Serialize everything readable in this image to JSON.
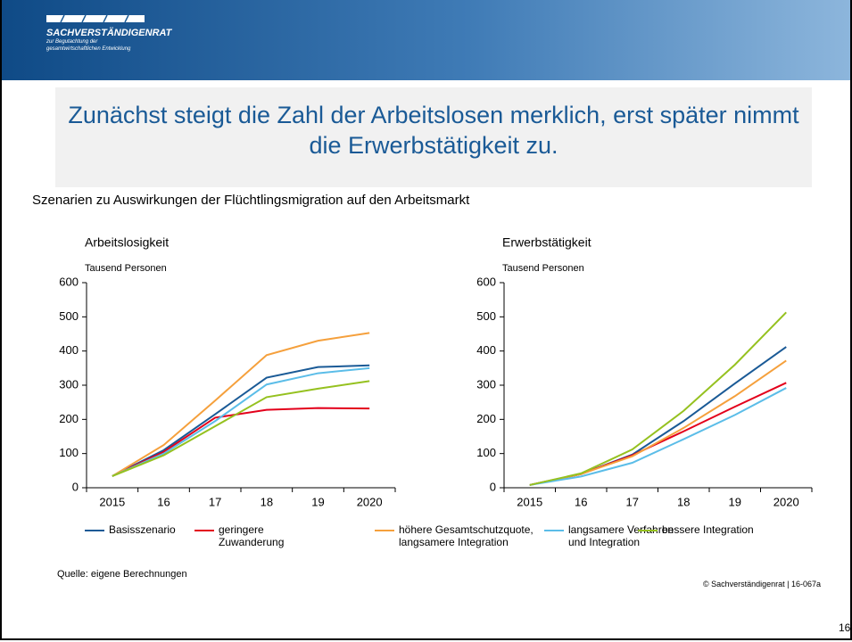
{
  "header": {
    "org": "SACHVERSTÄNDIGENRAT",
    "line1": "zur Begutachtung der",
    "line2": "gesamtwirtschaftlichen Entwicklung"
  },
  "slide_title": "Zunächst steigt die Zahl der Arbeitslosen merklich, erst später nimmt die Erwerbstätigkeit zu.",
  "subtitle": "Szenarien zu Auswirkungen der Flüchtlingsmigration auf den Arbeitsmarkt",
  "source": "Quelle: eigene Berechnungen",
  "copyright": "© Sachverständigenrat | 16-067a",
  "page_number": "16",
  "chart_data": [
    {
      "type": "line",
      "title": "Arbeitslosigkeit",
      "ylabel": "Tausend Personen",
      "categories": [
        "2015",
        "16",
        "17",
        "18",
        "19",
        "2020"
      ],
      "ylim": [
        0,
        600
      ],
      "yticks": [
        0,
        100,
        200,
        300,
        400,
        500,
        600
      ],
      "series": [
        {
          "name": "Basisszenario",
          "color": "#1a5a96",
          "values": [
            34,
            110,
            215,
            322,
            353,
            358
          ]
        },
        {
          "name": "geringere Zuwanderung",
          "color": "#e3001b",
          "values": [
            34,
            105,
            205,
            228,
            233,
            232
          ]
        },
        {
          "name": "höhere Gesamtschutzquote, langsamere Integration",
          "color": "#f5a03c",
          "values": [
            34,
            125,
            255,
            388,
            430,
            453
          ]
        },
        {
          "name": "langsamere Verfahren und Integration",
          "color": "#5bbde8",
          "values": [
            34,
            100,
            195,
            302,
            335,
            350
          ]
        },
        {
          "name": "bessere Integration",
          "color": "#95c11f",
          "values": [
            34,
            95,
            180,
            265,
            290,
            312
          ]
        }
      ]
    },
    {
      "type": "line",
      "title": "Erwerbstätigkeit",
      "ylabel": "Tausend Personen",
      "categories": [
        "2015",
        "16",
        "17",
        "18",
        "19",
        "2020"
      ],
      "ylim": [
        0,
        600
      ],
      "yticks": [
        0,
        100,
        200,
        300,
        400,
        500,
        600
      ],
      "series": [
        {
          "color": "#1a5a96",
          "values": [
            8,
            40,
            97,
            195,
            305,
            412
          ]
        },
        {
          "color": "#e3001b",
          "values": [
            8,
            40,
            95,
            165,
            237,
            307
          ]
        },
        {
          "color": "#f5a03c",
          "values": [
            8,
            40,
            92,
            175,
            268,
            372
          ]
        },
        {
          "color": "#5bbde8",
          "values": [
            8,
            33,
            73,
            142,
            213,
            292
          ]
        },
        {
          "color": "#95c11f",
          "values": [
            8,
            42,
            112,
            225,
            360,
            513
          ]
        }
      ]
    }
  ]
}
